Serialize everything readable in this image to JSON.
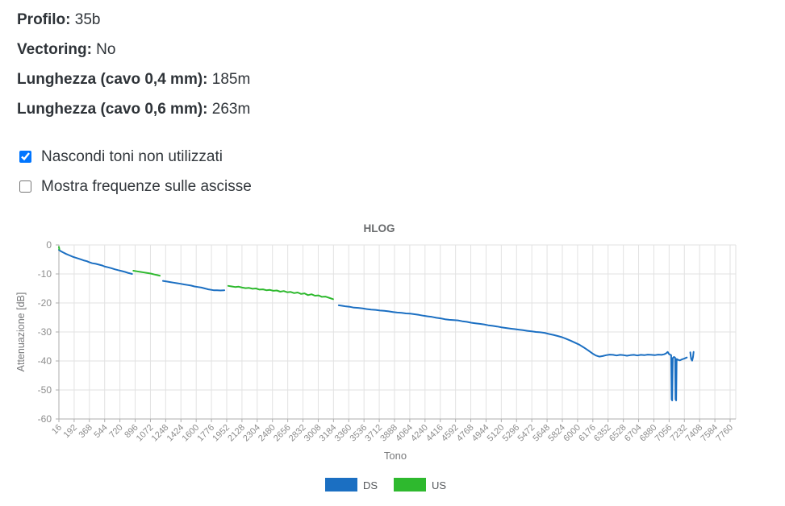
{
  "info": {
    "rows": [
      {
        "label": "Profilo:",
        "value": "35b"
      },
      {
        "label": "Vectoring:",
        "value": "No"
      },
      {
        "label": "Lunghezza (cavo 0,4 mm):",
        "value": "185m"
      },
      {
        "label": "Lunghezza (cavo 0,6 mm):",
        "value": "263m"
      }
    ]
  },
  "controls": {
    "checkboxes": [
      {
        "label": "Nascondi toni non utilizzati",
        "checked": true
      },
      {
        "label": "Mostra frequenze sulle ascisse",
        "checked": false
      }
    ]
  },
  "chart_data": {
    "type": "line",
    "title": "HLOG",
    "xlabel": "Tono",
    "ylabel": "Attenuazione [dB]",
    "ylim": [
      -60,
      0
    ],
    "xlim": [
      16,
      7840
    ],
    "grid": true,
    "legend_position": "bottom",
    "y_ticks": [
      0,
      -10,
      -20,
      -30,
      -40,
      -50,
      -60
    ],
    "x_ticks": [
      16,
      192,
      368,
      544,
      720,
      896,
      1072,
      1248,
      1424,
      1600,
      1776,
      1952,
      2128,
      2304,
      2480,
      2656,
      2832,
      3008,
      3184,
      3360,
      3536,
      3712,
      3888,
      4064,
      4240,
      4416,
      4592,
      4768,
      4944,
      5120,
      5296,
      5472,
      5648,
      5824,
      6000,
      6176,
      6352,
      6528,
      6704,
      6880,
      7056,
      7232,
      7408,
      7584,
      7760
    ],
    "legend": [
      {
        "name": "DS",
        "color": "#1b6fc2"
      },
      {
        "name": "US",
        "color": "#2eb92e"
      }
    ],
    "series": [
      {
        "name": "DS",
        "color": "#1b6fc2",
        "segments": [
          [
            [
              16,
              -1.7
            ],
            [
              30,
              -2.0
            ],
            [
              60,
              -2.5
            ],
            [
              100,
              -3.1
            ],
            [
              140,
              -3.6
            ],
            [
              180,
              -4.1
            ],
            [
              220,
              -4.5
            ],
            [
              260,
              -4.9
            ],
            [
              300,
              -5.3
            ],
            [
              340,
              -5.6
            ],
            [
              360,
              -5.9
            ],
            [
              400,
              -6.3
            ],
            [
              440,
              -6.5
            ],
            [
              480,
              -6.8
            ],
            [
              520,
              -7.1
            ],
            [
              540,
              -7.4
            ],
            [
              580,
              -7.7
            ],
            [
              620,
              -8.0
            ],
            [
              660,
              -8.4
            ],
            [
              700,
              -8.7
            ],
            [
              740,
              -9.0
            ],
            [
              780,
              -9.3
            ],
            [
              820,
              -9.7
            ],
            [
              860,
              -10.0
            ]
          ],
          [
            [
              1217,
              -12.4
            ],
            [
              1260,
              -12.6
            ],
            [
              1300,
              -12.8
            ],
            [
              1340,
              -13.0
            ],
            [
              1380,
              -13.2
            ],
            [
              1420,
              -13.4
            ],
            [
              1460,
              -13.6
            ],
            [
              1500,
              -13.8
            ],
            [
              1540,
              -14.0
            ],
            [
              1580,
              -14.3
            ],
            [
              1620,
              -14.5
            ],
            [
              1660,
              -14.7
            ],
            [
              1700,
              -15.0
            ],
            [
              1740,
              -15.3
            ],
            [
              1780,
              -15.5
            ],
            [
              1800,
              -15.6
            ],
            [
              1840,
              -15.6
            ],
            [
              1880,
              -15.7
            ],
            [
              1925,
              -15.6
            ]
          ],
          [
            [
              3245,
              -20.8
            ],
            [
              3290,
              -21.0
            ],
            [
              3330,
              -21.2
            ],
            [
              3370,
              -21.3
            ],
            [
              3420,
              -21.6
            ],
            [
              3470,
              -21.7
            ],
            [
              3520,
              -21.9
            ],
            [
              3570,
              -22.1
            ],
            [
              3620,
              -22.3
            ],
            [
              3670,
              -22.4
            ],
            [
              3720,
              -22.6
            ],
            [
              3770,
              -22.7
            ],
            [
              3820,
              -22.9
            ],
            [
              3870,
              -23.1
            ],
            [
              3920,
              -23.3
            ],
            [
              3970,
              -23.4
            ],
            [
              4020,
              -23.6
            ],
            [
              4070,
              -23.7
            ],
            [
              4120,
              -23.9
            ],
            [
              4170,
              -24.1
            ],
            [
              4220,
              -24.4
            ],
            [
              4270,
              -24.6
            ],
            [
              4320,
              -24.8
            ],
            [
              4370,
              -25.1
            ],
            [
              4420,
              -25.3
            ],
            [
              4470,
              -25.6
            ],
            [
              4520,
              -25.8
            ],
            [
              4570,
              -25.9
            ],
            [
              4620,
              -26.0
            ],
            [
              4670,
              -26.3
            ],
            [
              4720,
              -26.5
            ],
            [
              4770,
              -26.8
            ],
            [
              4820,
              -27.0
            ],
            [
              4870,
              -27.2
            ],
            [
              4920,
              -27.4
            ],
            [
              4970,
              -27.7
            ],
            [
              5020,
              -27.9
            ],
            [
              5070,
              -28.1
            ],
            [
              5120,
              -28.4
            ],
            [
              5170,
              -28.6
            ],
            [
              5220,
              -28.8
            ],
            [
              5270,
              -29.0
            ],
            [
              5320,
              -29.2
            ],
            [
              5370,
              -29.4
            ],
            [
              5420,
              -29.6
            ],
            [
              5470,
              -29.8
            ],
            [
              5520,
              -30.0
            ],
            [
              5570,
              -30.1
            ],
            [
              5620,
              -30.3
            ],
            [
              5670,
              -30.7
            ],
            [
              5720,
              -31.0
            ],
            [
              5770,
              -31.4
            ],
            [
              5820,
              -31.8
            ],
            [
              5870,
              -32.4
            ],
            [
              5920,
              -33.0
            ],
            [
              5970,
              -33.7
            ],
            [
              6020,
              -34.4
            ],
            [
              6070,
              -35.3
            ],
            [
              6120,
              -36.3
            ],
            [
              6170,
              -37.4
            ],
            [
              6210,
              -38.1
            ],
            [
              6250,
              -38.5
            ],
            [
              6290,
              -38.3
            ],
            [
              6330,
              -38.0
            ],
            [
              6370,
              -37.8
            ],
            [
              6410,
              -37.9
            ],
            [
              6450,
              -38.1
            ],
            [
              6490,
              -37.9
            ],
            [
              6530,
              -38.0
            ],
            [
              6570,
              -38.2
            ],
            [
              6610,
              -38.0
            ],
            [
              6650,
              -37.9
            ],
            [
              6690,
              -38.1
            ],
            [
              6730,
              -37.9
            ],
            [
              6770,
              -38.0
            ],
            [
              6810,
              -37.8
            ],
            [
              6850,
              -37.9
            ],
            [
              6890,
              -38.0
            ],
            [
              6930,
              -37.8
            ],
            [
              6970,
              -37.9
            ],
            [
              7000,
              -37.7
            ],
            [
              7020,
              -37.4
            ],
            [
              7040,
              -36.9
            ],
            [
              7055,
              -37.6
            ],
            [
              7070,
              -37.9
            ],
            [
              7080,
              -38.0
            ],
            [
              7085,
              -53.3
            ],
            [
              7092,
              -53.6
            ],
            [
              7098,
              -39.0
            ],
            [
              7112,
              -38.6
            ],
            [
              7125,
              -38.9
            ],
            [
              7130,
              -53.2
            ],
            [
              7137,
              -53.6
            ],
            [
              7143,
              -39.3
            ],
            [
              7160,
              -39.6
            ],
            [
              7180,
              -39.8
            ],
            [
              7200,
              -39.5
            ],
            [
              7230,
              -39.2
            ],
            [
              7260,
              -38.8
            ]
          ],
          [
            [
              7300,
              -37.0
            ],
            [
              7310,
              -39.3
            ],
            [
              7322,
              -39.9
            ],
            [
              7332,
              -38.6
            ],
            [
              7338,
              -36.9
            ]
          ]
        ]
      },
      {
        "name": "US",
        "color": "#2eb92e",
        "segments": [
          [
            [
              16,
              -0.7
            ],
            [
              22,
              -1.5
            ]
          ],
          [
            [
              875,
              -8.9
            ],
            [
              920,
              -9.1
            ],
            [
              960,
              -9.3
            ],
            [
              1000,
              -9.5
            ],
            [
              1040,
              -9.7
            ],
            [
              1080,
              -9.9
            ],
            [
              1120,
              -10.2
            ],
            [
              1150,
              -10.4
            ],
            [
              1180,
              -10.6
            ]
          ],
          [
            [
              1970,
              -14.1
            ],
            [
              2010,
              -14.3
            ],
            [
              2050,
              -14.5
            ],
            [
              2090,
              -14.4
            ],
            [
              2130,
              -14.7
            ],
            [
              2170,
              -14.9
            ],
            [
              2210,
              -14.8
            ],
            [
              2250,
              -15.1
            ],
            [
              2290,
              -15.0
            ],
            [
              2330,
              -15.4
            ],
            [
              2370,
              -15.3
            ],
            [
              2410,
              -15.6
            ],
            [
              2450,
              -15.5
            ],
            [
              2490,
              -15.8
            ],
            [
              2530,
              -15.7
            ],
            [
              2570,
              -16.1
            ],
            [
              2610,
              -15.9
            ],
            [
              2650,
              -16.3
            ],
            [
              2690,
              -16.2
            ],
            [
              2730,
              -16.6
            ],
            [
              2770,
              -16.4
            ],
            [
              2810,
              -16.9
            ],
            [
              2850,
              -16.7
            ],
            [
              2890,
              -17.3
            ],
            [
              2930,
              -17.0
            ],
            [
              2970,
              -17.5
            ],
            [
              3010,
              -17.4
            ],
            [
              3050,
              -17.9
            ],
            [
              3090,
              -17.8
            ],
            [
              3130,
              -18.2
            ],
            [
              3180,
              -18.7
            ]
          ]
        ]
      }
    ]
  },
  "colors": {
    "grid": "#e2e2e2",
    "axis": "#aeaeae",
    "tick_label": "#8d8d8d",
    "title": "#6a6c6e",
    "axis_label": "#77787a",
    "legend_text": "#55585c"
  }
}
